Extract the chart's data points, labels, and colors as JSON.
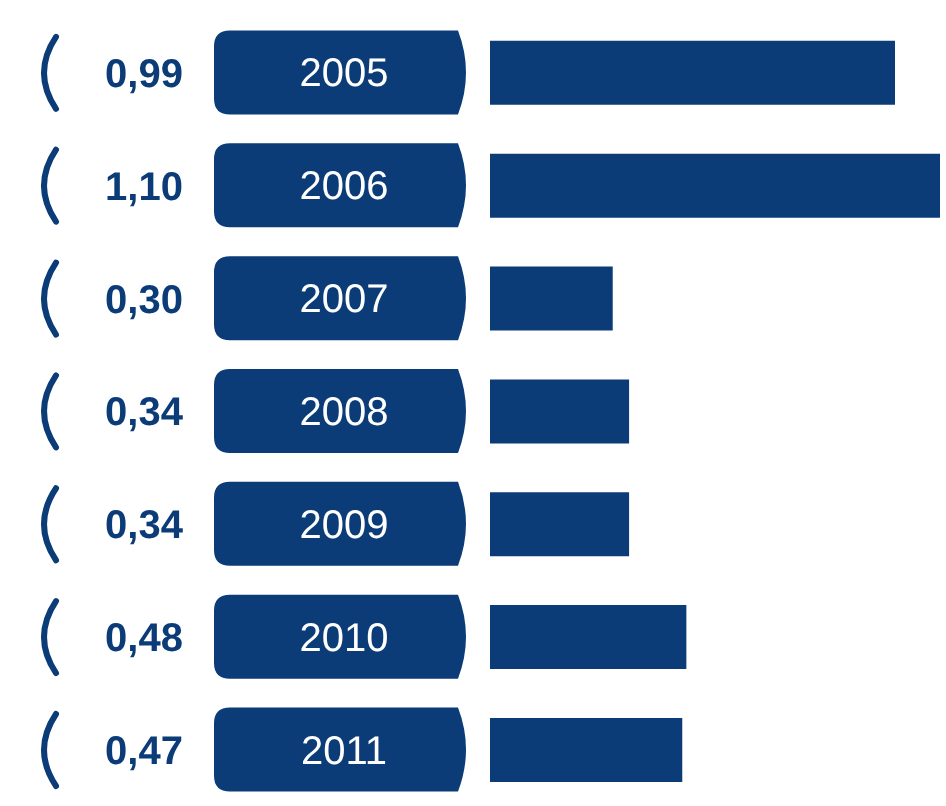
{
  "chart_data": {
    "type": "bar",
    "orientation": "horizontal",
    "categories": [
      "2005",
      "2006",
      "2007",
      "2008",
      "2009",
      "2010",
      "2011"
    ],
    "values": [
      0.99,
      1.1,
      0.3,
      0.34,
      0.34,
      0.48,
      0.47
    ],
    "value_labels": [
      "0,99",
      "1,10",
      "0,30",
      "0,34",
      "0,34",
      "0,48",
      "0,47"
    ],
    "color": "#0b3c78",
    "grid": false,
    "legend": false
  }
}
